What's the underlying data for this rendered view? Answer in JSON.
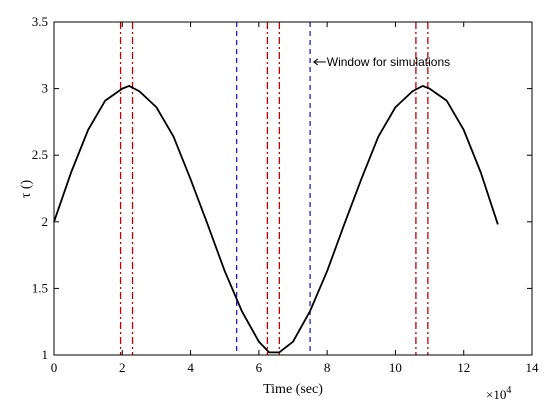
{
  "chart_data": {
    "type": "line",
    "xlabel": "Time (sec)",
    "ylabel": "τ ()",
    "x_exponent_label": "×10",
    "x_exponent_power": "4",
    "xlim": [
      0,
      14
    ],
    "ylim": [
      1,
      3.5
    ],
    "xticks": [
      "0",
      "2",
      "4",
      "6",
      "8",
      "10",
      "12",
      "14"
    ],
    "yticks": [
      "1",
      "1.5",
      "2",
      "2.5",
      "3",
      "3.5"
    ],
    "grid": false,
    "series": [
      {
        "color": "#000000",
        "x": [
          0,
          0.5,
          1,
          1.5,
          2,
          2.2,
          2.5,
          3,
          3.5,
          4,
          4.5,
          5,
          5.5,
          6,
          6.3,
          6.6,
          7,
          7.5,
          8,
          8.5,
          9,
          9.5,
          10,
          10.5,
          10.8,
          11,
          11.5,
          12,
          12.5,
          13
        ],
        "y": [
          2.0,
          2.37,
          2.69,
          2.91,
          3.0,
          3.02,
          2.98,
          2.86,
          2.64,
          2.32,
          1.98,
          1.63,
          1.33,
          1.1,
          1.02,
          1.02,
          1.1,
          1.33,
          1.63,
          1.98,
          2.32,
          2.64,
          2.86,
          2.98,
          3.02,
          3.0,
          2.91,
          2.69,
          2.37,
          1.98
        ]
      }
    ],
    "vlines": [
      {
        "x": 1.95,
        "color": "#c00000",
        "style": "dashdot"
      },
      {
        "x": 2.3,
        "color": "#c00000",
        "style": "dashdot"
      },
      {
        "x": 6.25,
        "color": "#c00000",
        "style": "dashdot"
      },
      {
        "x": 6.6,
        "color": "#c00000",
        "style": "dashdot"
      },
      {
        "x": 10.6,
        "color": "#c00000",
        "style": "dashdot"
      },
      {
        "x": 10.95,
        "color": "#c00000",
        "style": "dashdot"
      },
      {
        "x": 5.35,
        "color": "#1f1fd0",
        "style": "dashed"
      },
      {
        "x": 7.5,
        "color": "#1f1fd0",
        "style": "dashed"
      }
    ],
    "annotation": {
      "text": "Window for simulations",
      "x": 7.55,
      "y": 3.2
    }
  }
}
